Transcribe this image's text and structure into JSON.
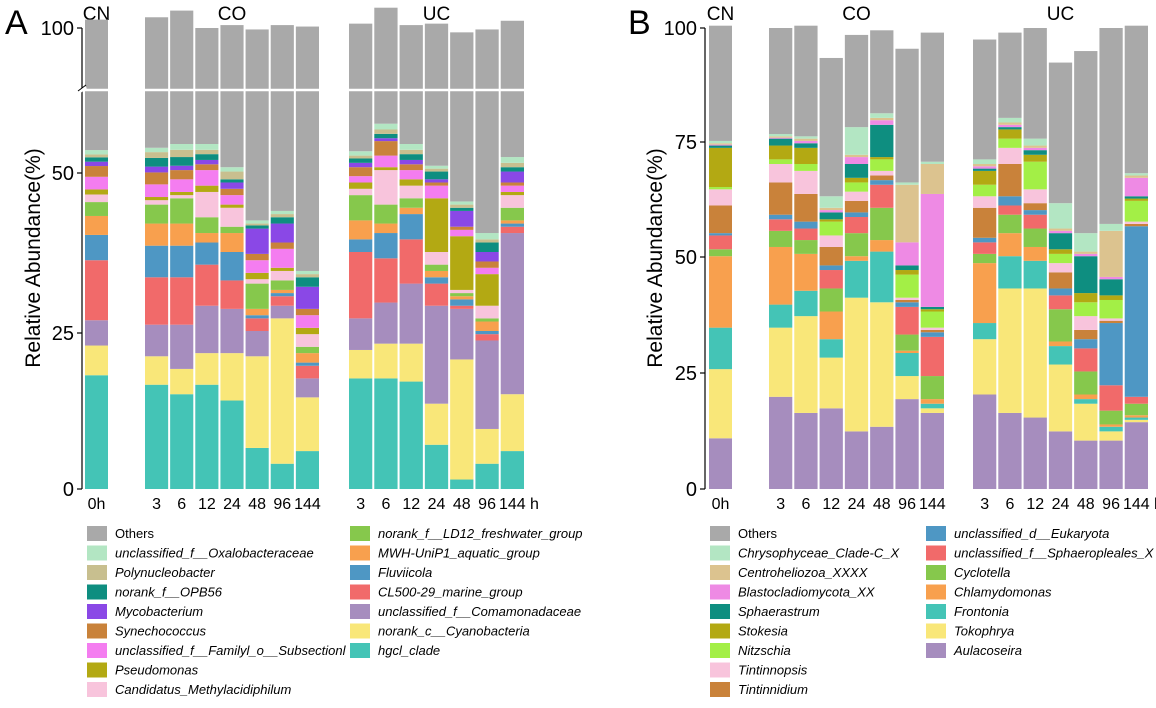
{
  "chart_data": [
    {
      "panel": "A",
      "type": "bar",
      "stacked": true,
      "ylabel": "Relative Abundance(%)",
      "yticks": [
        "0",
        "25",
        "50",
        "100"
      ],
      "xunit": "h",
      "axis_break": "between 50 and 100 (compressed region shown with white break line)",
      "groups": [
        {
          "name": "CN",
          "categories": [
            "0h"
          ]
        },
        {
          "name": "CO",
          "categories": [
            "3",
            "6",
            "12",
            "24",
            "48",
            "96",
            "144"
          ]
        },
        {
          "name": "UC",
          "categories": [
            "3",
            "6",
            "12",
            "24",
            "48",
            "96",
            "144"
          ]
        }
      ],
      "legend": [
        {
          "name": "Others",
          "color": "#a9a9a9",
          "italic": false
        },
        {
          "name": "unclassified_f__Oxalobacteraceae",
          "color": "#b3e6c3",
          "italic": true
        },
        {
          "name": "Polynucleobacter",
          "color": "#c8bf8f",
          "italic": true
        },
        {
          "name": "norank_f__OPB56",
          "color": "#0e8e80",
          "italic": true
        },
        {
          "name": "Mycobacterium",
          "color": "#8a48e6",
          "italic": true
        },
        {
          "name": "Synechococcus",
          "color": "#c9823a",
          "italic": true
        },
        {
          "name": "unclassified_f__Familyl_o__Subsectionl",
          "color": "#f47df0",
          "italic": true
        },
        {
          "name": "Pseudomonas",
          "color": "#b3a913",
          "italic": true
        },
        {
          "name": "Candidatus_Methylacidiphilum",
          "color": "#f8c4dc",
          "italic": true
        },
        {
          "name": "norank_f__LD12_freshwater_group",
          "color": "#86c84c",
          "italic": true
        },
        {
          "name": "MWH-UniP1_aquatic_group",
          "color": "#f8a04e",
          "italic": true
        },
        {
          "name": "Fluviicola",
          "color": "#4e97c4",
          "italic": true
        },
        {
          "name": "CL500-29_marine_group",
          "color": "#f16a6a",
          "italic": true
        },
        {
          "name": "unclassified_f__Comamonadaceae",
          "color": "#a68dbe",
          "italic": true
        },
        {
          "name": "norank_c__Cyanobacteria",
          "color": "#f9e779",
          "italic": true
        },
        {
          "name": "hgcl_clade",
          "color": "#44c4b6",
          "italic": true
        }
      ],
      "bars": {
        "CN|0h": [
          45.0,
          1.5,
          1.0,
          1.5,
          1.5,
          3.0,
          2.0,
          0.8,
          1.2,
          2.2,
          3.0,
          4.0,
          9.5,
          4.0,
          4.7,
          18.0
        ],
        "CO|3": [
          45.0,
          1.5,
          2.0,
          3.0,
          2.0,
          2.0,
          2.0,
          0.5,
          0.7,
          3.0,
          3.5,
          5.0,
          7.5,
          5.0,
          4.5,
          16.5
        ],
        "CO|6": [
          46.0,
          2.0,
          2.5,
          3.0,
          1.5,
          2.0,
          2.0,
          0.5,
          0.5,
          4.0,
          3.5,
          5.0,
          7.5,
          7.0,
          4.0,
          15.0
        ],
        "CO|12": [
          40.0,
          2.0,
          1.5,
          2.0,
          1.5,
          2.0,
          3.0,
          1.0,
          4.0,
          2.5,
          1.5,
          3.5,
          6.5,
          7.5,
          5.0,
          16.5
        ],
        "CO|24": [
          49.0,
          1.5,
          1.5,
          0.5,
          1.0,
          1.0,
          1.5,
          0.5,
          3.0,
          1.0,
          3.0,
          4.5,
          4.5,
          7.0,
          7.5,
          14.0
        ],
        "CO|48": [
          57.0,
          0.5,
          0.3,
          0.5,
          4.0,
          1.0,
          2.0,
          1.0,
          0.7,
          4.0,
          1.0,
          0.5,
          2.0,
          4.0,
          14.5,
          6.5
        ],
        "CO|96": [
          57.0,
          0.5,
          0.5,
          1.0,
          3.0,
          1.0,
          3.0,
          0.5,
          1.5,
          1.5,
          0.5,
          0.5,
          1.5,
          2.0,
          23.0,
          4.0
        ],
        "CO|144": [
          66.0,
          0.5,
          0.5,
          1.5,
          3.5,
          1.0,
          2.0,
          1.0,
          2.0,
          1.0,
          1.5,
          0.5,
          2.0,
          3.0,
          8.5,
          6.0
        ],
        "UC|3": [
          44.0,
          1.5,
          1.0,
          1.5,
          1.5,
          2.5,
          1.0,
          1.0,
          1.0,
          4.0,
          3.0,
          2.0,
          10.5,
          5.0,
          4.5,
          17.5
        ],
        "UC|6": [
          40.0,
          2.0,
          1.5,
          1.5,
          1.0,
          5.0,
          4.0,
          1.0,
          6.0,
          3.0,
          1.5,
          4.0,
          7.0,
          6.5,
          5.5,
          17.5
        ],
        "UC|12": [
          41.0,
          2.0,
          1.5,
          2.0,
          1.5,
          2.0,
          2.0,
          1.0,
          2.0,
          1.5,
          1.0,
          4.0,
          7.0,
          9.5,
          6.0,
          17.0
        ],
        "UC|24": [
          49.0,
          1.0,
          1.0,
          1.5,
          0.5,
          0.5,
          2.0,
          8.5,
          2.0,
          1.0,
          1.0,
          1.0,
          3.5,
          15.5,
          6.5,
          7.0
        ],
        "UC|48": [
          53.0,
          0.5,
          0.5,
          0.5,
          2.5,
          0.5,
          1.0,
          8.5,
          0.5,
          0.5,
          0.5,
          1.0,
          0.5,
          8.0,
          19.0,
          1.5
        ],
        "UC|96": [
          59.0,
          1.0,
          0.5,
          1.5,
          1.5,
          1.0,
          1.0,
          5.0,
          2.0,
          0.5,
          1.5,
          0.5,
          1.0,
          14.0,
          5.5,
          4.0
        ],
        "UC|144": [
          47.0,
          2.0,
          1.5,
          1.5,
          2.0,
          0.5,
          1.0,
          0.5,
          2.0,
          2.0,
          0.5,
          0.5,
          1.0,
          25.5,
          9.0,
          6.0
        ]
      }
    },
    {
      "panel": "B",
      "type": "bar",
      "stacked": true,
      "ylabel": "Relative Abundance(%)",
      "yticks": [
        "0",
        "25",
        "50",
        "75",
        "100"
      ],
      "xunit": "h",
      "groups": [
        {
          "name": "CN",
          "categories": [
            "0h"
          ]
        },
        {
          "name": "CO",
          "categories": [
            "3",
            "6",
            "12",
            "24",
            "48",
            "96",
            "144"
          ]
        },
        {
          "name": "UC",
          "categories": [
            "3",
            "6",
            "12",
            "24",
            "48",
            "96",
            "144"
          ]
        }
      ],
      "legend": [
        {
          "name": "Others",
          "color": "#a9a9a9",
          "italic": false
        },
        {
          "name": "Chrysophyceae_Clade-C_X",
          "color": "#b3e6c3",
          "italic": true
        },
        {
          "name": "Centroheliozoa_XXXX",
          "color": "#dcc38f",
          "italic": true
        },
        {
          "name": "Blastocladiomycota_XX",
          "color": "#ee8ae4",
          "italic": true
        },
        {
          "name": "Sphaerastrum",
          "color": "#0e8e80",
          "italic": true
        },
        {
          "name": "Stokesia",
          "color": "#b3a913",
          "italic": true
        },
        {
          "name": "Nitzschia",
          "color": "#a3ef46",
          "italic": true
        },
        {
          "name": "Tintinnopsis",
          "color": "#f8c4dc",
          "italic": true
        },
        {
          "name": "Tintinnidium",
          "color": "#c9823a",
          "italic": true
        },
        {
          "name": "unclassified_d__Eukaryota",
          "color": "#4e97c4",
          "italic": true
        },
        {
          "name": "unclassified_f__Sphaeropleales_X",
          "color": "#f16a6a",
          "italic": true
        },
        {
          "name": "Cyclotella",
          "color": "#86c84c",
          "italic": true
        },
        {
          "name": "Chlamydomonas",
          "color": "#f8a04e",
          "italic": true
        },
        {
          "name": "Frontonia",
          "color": "#44c4b6",
          "italic": true
        },
        {
          "name": "Tokophrya",
          "color": "#f9e779",
          "italic": true
        },
        {
          "name": "Aulacoseira",
          "color": "#a68dbe",
          "italic": true
        }
      ],
      "bars": {
        "CN|0h": [
          25.0,
          0.5,
          0.3,
          0.2,
          0.5,
          8.5,
          0.5,
          3.5,
          6.0,
          0.5,
          3.0,
          1.5,
          15.5,
          9.0,
          15.0,
          11.0
        ],
        "CO|3": [
          23.0,
          0.5,
          0.3,
          0.2,
          1.5,
          3.0,
          1.0,
          4.0,
          7.0,
          1.0,
          2.5,
          3.5,
          12.5,
          5.0,
          15.0,
          20.0
        ],
        "CO|6": [
          24.0,
          0.5,
          0.5,
          0.5,
          1.0,
          3.5,
          1.5,
          5.0,
          6.0,
          1.5,
          2.5,
          3.0,
          8.0,
          5.5,
          21.0,
          16.5
        ],
        "CO|12": [
          30.0,
          2.5,
          0.5,
          0.5,
          1.5,
          0.5,
          3.0,
          2.5,
          4.0,
          1.0,
          4.0,
          5.0,
          6.0,
          4.0,
          11.0,
          17.5
        ],
        "CO|24": [
          20.0,
          6.0,
          0.5,
          1.5,
          3.0,
          1.0,
          2.0,
          2.0,
          2.5,
          1.0,
          3.5,
          5.0,
          1.0,
          8.0,
          29.0,
          12.5
        ],
        "CO|48": [
          18.0,
          1.0,
          0.5,
          1.0,
          7.0,
          0.5,
          2.5,
          1.0,
          1.0,
          1.0,
          5.0,
          7.0,
          2.5,
          11.0,
          27.0,
          13.5
        ],
        "CO|96": [
          29.0,
          0.5,
          12.5,
          5.0,
          1.0,
          1.0,
          5.0,
          0.5,
          0.5,
          1.0,
          6.0,
          3.5,
          0.5,
          5.0,
          5.0,
          19.5
        ],
        "CO|144": [
          28.0,
          0.5,
          6.5,
          24.5,
          0.5,
          0.5,
          3.5,
          0.5,
          0.5,
          1.0,
          8.5,
          5.0,
          1.0,
          1.0,
          1.0,
          16.5
        ],
        "UC|3": [
          26.0,
          1.0,
          0.5,
          0.5,
          0.5,
          3.0,
          2.5,
          2.5,
          6.5,
          1.0,
          2.5,
          2.0,
          13.0,
          3.5,
          12.0,
          20.5
        ],
        "UC|6": [
          18.5,
          1.0,
          0.5,
          0.5,
          0.5,
          2.0,
          2.0,
          3.5,
          7.0,
          2.0,
          2.0,
          4.0,
          5.0,
          7.0,
          27.0,
          16.5
        ],
        "UC|12": [
          24.0,
          1.5,
          0.5,
          0.5,
          1.0,
          1.5,
          6.0,
          3.0,
          1.5,
          1.0,
          3.0,
          4.0,
          3.0,
          6.0,
          28.0,
          15.5
        ],
        "UC|24": [
          30.5,
          5.5,
          0.5,
          0.5,
          3.5,
          1.0,
          2.0,
          2.0,
          3.5,
          1.5,
          3.0,
          7.0,
          1.0,
          4.0,
          14.5,
          12.5
        ],
        "UC|48": [
          39.5,
          4.0,
          0.5,
          0.5,
          8.0,
          2.0,
          3.0,
          3.0,
          2.0,
          2.0,
          5.0,
          5.0,
          1.0,
          1.0,
          8.0,
          10.5
        ],
        "UC|96": [
          42.5,
          1.5,
          10.0,
          0.5,
          3.5,
          1.0,
          4.0,
          0.5,
          0.5,
          13.5,
          5.5,
          3.0,
          0.5,
          1.0,
          2.0,
          10.5
        ],
        "UC|144": [
          32.0,
          0.5,
          0.5,
          4.0,
          0.5,
          0.5,
          4.5,
          0.5,
          0.5,
          37.0,
          1.5,
          2.5,
          0.5,
          0.5,
          0.5,
          14.5
        ]
      }
    }
  ]
}
